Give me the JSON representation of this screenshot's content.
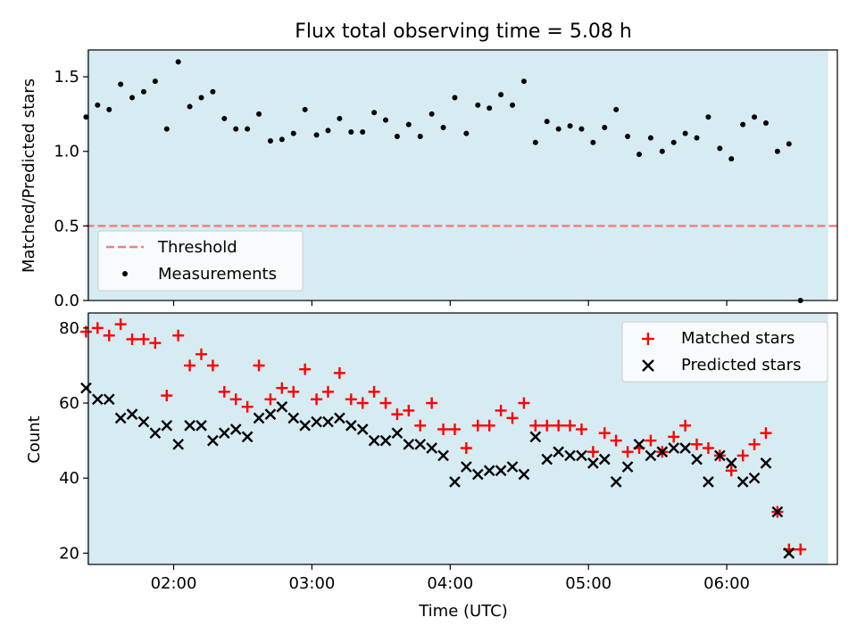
{
  "title": "Flux total observing time = 5.08 h",
  "chart_data": [
    {
      "type": "scatter",
      "panel": "top",
      "ylabel": "Matched/Predicted stars",
      "xlabel": "",
      "xlim": [
        "01:23",
        "06:48"
      ],
      "ylim": [
        0,
        1.68
      ],
      "yticks": [
        "0.0",
        "0.5",
        "1.0",
        "1.5"
      ],
      "grid": false,
      "legend_placement": "lower-left",
      "shaded_span": [
        "01:22",
        "06:44"
      ],
      "threshold": {
        "name": "Threshold",
        "value": 0.5,
        "x_range": [
          "01:22",
          "06:48"
        ],
        "color": "#f08080"
      },
      "series": [
        {
          "name": "Measurements",
          "color": "#000000",
          "points": [
            [
              "01:22",
              1.23
            ],
            [
              "01:27",
              1.31
            ],
            [
              "01:32",
              1.28
            ],
            [
              "01:37",
              1.45
            ],
            [
              "01:42",
              1.36
            ],
            [
              "01:47",
              1.4
            ],
            [
              "01:52",
              1.47
            ],
            [
              "01:57",
              1.15
            ],
            [
              "02:02",
              1.6
            ],
            [
              "02:07",
              1.3
            ],
            [
              "02:12",
              1.36
            ],
            [
              "02:17",
              1.4
            ],
            [
              "02:22",
              1.22
            ],
            [
              "02:27",
              1.15
            ],
            [
              "02:32",
              1.15
            ],
            [
              "02:37",
              1.25
            ],
            [
              "02:42",
              1.07
            ],
            [
              "02:47",
              1.08
            ],
            [
              "02:52",
              1.12
            ],
            [
              "02:57",
              1.28
            ],
            [
              "03:02",
              1.11
            ],
            [
              "03:07",
              1.14
            ],
            [
              "03:12",
              1.22
            ],
            [
              "03:17",
              1.13
            ],
            [
              "03:22",
              1.13
            ],
            [
              "03:27",
              1.26
            ],
            [
              "03:32",
              1.21
            ],
            [
              "03:37",
              1.1
            ],
            [
              "03:42",
              1.18
            ],
            [
              "03:47",
              1.1
            ],
            [
              "03:52",
              1.25
            ],
            [
              "03:57",
              1.16
            ],
            [
              "04:02",
              1.36
            ],
            [
              "04:07",
              1.12
            ],
            [
              "04:12",
              1.31
            ],
            [
              "04:17",
              1.29
            ],
            [
              "04:22",
              1.38
            ],
            [
              "04:27",
              1.31
            ],
            [
              "04:32",
              1.47
            ],
            [
              "04:37",
              1.06
            ],
            [
              "04:42",
              1.2
            ],
            [
              "04:47",
              1.15
            ],
            [
              "04:52",
              1.17
            ],
            [
              "04:57",
              1.15
            ],
            [
              "05:02",
              1.06
            ],
            [
              "05:07",
              1.16
            ],
            [
              "05:12",
              1.28
            ],
            [
              "05:17",
              1.1
            ],
            [
              "05:22",
              0.98
            ],
            [
              "05:27",
              1.09
            ],
            [
              "05:32",
              1.0
            ],
            [
              "05:37",
              1.06
            ],
            [
              "05:42",
              1.12
            ],
            [
              "05:47",
              1.09
            ],
            [
              "05:52",
              1.23
            ],
            [
              "05:57",
              1.02
            ],
            [
              "06:02",
              0.95
            ],
            [
              "06:07",
              1.18
            ],
            [
              "06:12",
              1.23
            ],
            [
              "06:17",
              1.19
            ],
            [
              "06:22",
              1.0
            ],
            [
              "06:27",
              1.05
            ],
            [
              "06:32",
              0.0
            ]
          ]
        }
      ]
    },
    {
      "type": "scatter",
      "panel": "bottom",
      "ylabel": "Count",
      "xlabel": "Time (UTC)",
      "xlim": [
        "01:23",
        "06:48"
      ],
      "ylim": [
        17,
        84
      ],
      "yticks": [
        "20",
        "40",
        "60",
        "80"
      ],
      "xticks": [
        "02:00",
        "03:00",
        "04:00",
        "05:00",
        "06:00"
      ],
      "grid": false,
      "legend_placement": "upper-right",
      "shaded_span": [
        "01:22",
        "06:44"
      ],
      "series": [
        {
          "name": "Matched stars",
          "color": "#ff0000",
          "marker": "plus",
          "points": [
            [
              "01:22",
              79
            ],
            [
              "01:27",
              80
            ],
            [
              "01:32",
              78
            ],
            [
              "01:37",
              81
            ],
            [
              "01:42",
              77
            ],
            [
              "01:47",
              77
            ],
            [
              "01:52",
              76
            ],
            [
              "01:57",
              62
            ],
            [
              "02:02",
              78
            ],
            [
              "02:07",
              70
            ],
            [
              "02:12",
              73
            ],
            [
              "02:17",
              70
            ],
            [
              "02:22",
              63
            ],
            [
              "02:27",
              61
            ],
            [
              "02:32",
              59
            ],
            [
              "02:37",
              70
            ],
            [
              "02:42",
              61
            ],
            [
              "02:47",
              64
            ],
            [
              "02:52",
              63
            ],
            [
              "02:57",
              69
            ],
            [
              "03:02",
              61
            ],
            [
              "03:07",
              63
            ],
            [
              "03:12",
              68
            ],
            [
              "03:17",
              61
            ],
            [
              "03:22",
              60
            ],
            [
              "03:27",
              63
            ],
            [
              "03:32",
              60
            ],
            [
              "03:37",
              57
            ],
            [
              "03:42",
              58
            ],
            [
              "03:47",
              54
            ],
            [
              "03:52",
              60
            ],
            [
              "03:57",
              53
            ],
            [
              "04:02",
              53
            ],
            [
              "04:07",
              48
            ],
            [
              "04:12",
              54
            ],
            [
              "04:17",
              54
            ],
            [
              "04:22",
              58
            ],
            [
              "04:27",
              56
            ],
            [
              "04:32",
              60
            ],
            [
              "04:37",
              54
            ],
            [
              "04:42",
              54
            ],
            [
              "04:47",
              54
            ],
            [
              "04:52",
              54
            ],
            [
              "04:57",
              53
            ],
            [
              "05:02",
              47
            ],
            [
              "05:07",
              52
            ],
            [
              "05:12",
              50
            ],
            [
              "05:17",
              47
            ],
            [
              "05:22",
              48
            ],
            [
              "05:27",
              50
            ],
            [
              "05:32",
              47
            ],
            [
              "05:37",
              51
            ],
            [
              "05:42",
              54
            ],
            [
              "05:47",
              49
            ],
            [
              "05:52",
              48
            ],
            [
              "05:57",
              46
            ],
            [
              "06:02",
              42
            ],
            [
              "06:07",
              46
            ],
            [
              "06:12",
              49
            ],
            [
              "06:17",
              52
            ],
            [
              "06:22",
              31
            ],
            [
              "06:27",
              21
            ],
            [
              "06:32",
              21
            ]
          ]
        },
        {
          "name": "Predicted stars",
          "color": "#000000",
          "marker": "x",
          "points": [
            [
              "01:22",
              64
            ],
            [
              "01:27",
              61
            ],
            [
              "01:32",
              61
            ],
            [
              "01:37",
              56
            ],
            [
              "01:42",
              57
            ],
            [
              "01:47",
              55
            ],
            [
              "01:52",
              52
            ],
            [
              "01:57",
              54
            ],
            [
              "02:02",
              49
            ],
            [
              "02:07",
              54
            ],
            [
              "02:12",
              54
            ],
            [
              "02:17",
              50
            ],
            [
              "02:22",
              52
            ],
            [
              "02:27",
              53
            ],
            [
              "02:32",
              51
            ],
            [
              "02:37",
              56
            ],
            [
              "02:42",
              57
            ],
            [
              "02:47",
              59
            ],
            [
              "02:52",
              56
            ],
            [
              "02:57",
              54
            ],
            [
              "03:02",
              55
            ],
            [
              "03:07",
              55
            ],
            [
              "03:12",
              56
            ],
            [
              "03:17",
              54
            ],
            [
              "03:22",
              53
            ],
            [
              "03:27",
              50
            ],
            [
              "03:32",
              50
            ],
            [
              "03:37",
              52
            ],
            [
              "03:42",
              49
            ],
            [
              "03:47",
              49
            ],
            [
              "03:52",
              48
            ],
            [
              "03:57",
              46
            ],
            [
              "04:02",
              39
            ],
            [
              "04:07",
              43
            ],
            [
              "04:12",
              41
            ],
            [
              "04:17",
              42
            ],
            [
              "04:22",
              42
            ],
            [
              "04:27",
              43
            ],
            [
              "04:32",
              41
            ],
            [
              "04:37",
              51
            ],
            [
              "04:42",
              45
            ],
            [
              "04:47",
              47
            ],
            [
              "04:52",
              46
            ],
            [
              "04:57",
              46
            ],
            [
              "05:02",
              44
            ],
            [
              "05:07",
              45
            ],
            [
              "05:12",
              39
            ],
            [
              "05:17",
              43
            ],
            [
              "05:22",
              49
            ],
            [
              "05:27",
              46
            ],
            [
              "05:32",
              47
            ],
            [
              "05:37",
              48
            ],
            [
              "05:42",
              48
            ],
            [
              "05:47",
              45
            ],
            [
              "05:52",
              39
            ],
            [
              "05:57",
              46
            ],
            [
              "06:02",
              44
            ],
            [
              "06:07",
              39
            ],
            [
              "06:12",
              40
            ],
            [
              "06:17",
              44
            ],
            [
              "06:22",
              31
            ],
            [
              "06:27",
              20
            ]
          ]
        }
      ]
    }
  ],
  "colors": {
    "span": "#add8e6",
    "span_alpha": 0.5
  }
}
